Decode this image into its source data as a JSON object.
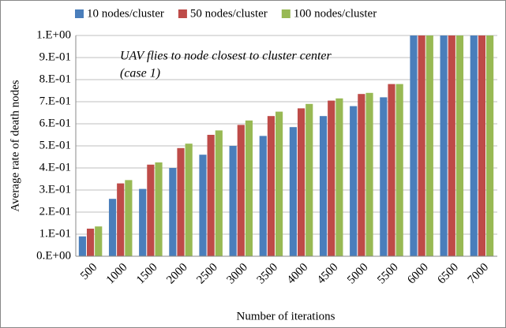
{
  "chart_data": {
    "type": "bar",
    "x_label": "Number of iterations",
    "y_label": "Average rate of death nodes",
    "annotation": [
      "UAV flies to node closest to cluster center",
      "(case 1)"
    ],
    "categories": [
      "500",
      "1000",
      "1500",
      "2000",
      "2500",
      "3000",
      "3500",
      "4000",
      "4500",
      "5000",
      "5500",
      "6000",
      "6500",
      "7000"
    ],
    "series": [
      {
        "name": "10 nodes/cluster",
        "color": "#4a7ebb",
        "values": [
          0.09,
          0.26,
          0.305,
          0.4,
          0.46,
          0.5,
          0.545,
          0.585,
          0.635,
          0.68,
          0.72,
          1,
          1,
          1
        ]
      },
      {
        "name": "50 nodes/cluster",
        "color": "#be4b48",
        "values": [
          0.125,
          0.33,
          0.415,
          0.49,
          0.55,
          0.595,
          0.635,
          0.67,
          0.705,
          0.735,
          0.78,
          1,
          1,
          1
        ]
      },
      {
        "name": "100 nodes/cluster",
        "color": "#98b954",
        "values": [
          0.135,
          0.345,
          0.425,
          0.51,
          0.57,
          0.615,
          0.655,
          0.69,
          0.715,
          0.74,
          0.78,
          1,
          1,
          1
        ]
      }
    ],
    "ylim": [
      0,
      1
    ],
    "yticks": [
      {
        "value": 0,
        "label": "0.E+00"
      },
      {
        "value": 0.1,
        "label": "1.E-01"
      },
      {
        "value": 0.2,
        "label": "2.E-01"
      },
      {
        "value": 0.3,
        "label": "3.E-01"
      },
      {
        "value": 0.4,
        "label": "4.E-01"
      },
      {
        "value": 0.5,
        "label": "5.E-01"
      },
      {
        "value": 0.6,
        "label": "6.E-01"
      },
      {
        "value": 0.7,
        "label": "7.E-01"
      },
      {
        "value": 0.8,
        "label": "8.E-01"
      },
      {
        "value": 0.9,
        "label": "9.E-01"
      },
      {
        "value": 1,
        "label": "1.E+00"
      }
    ],
    "grid": true,
    "legend": "top"
  }
}
